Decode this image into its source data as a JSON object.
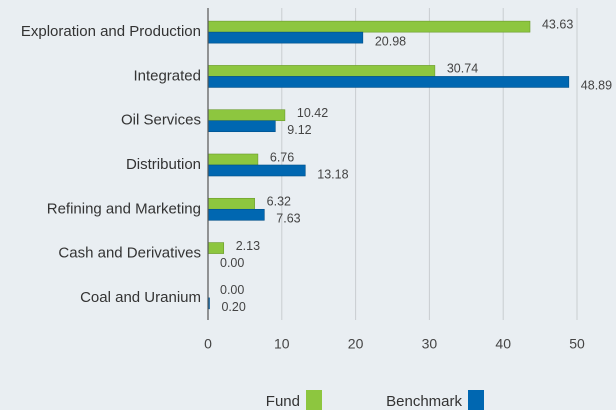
{
  "chart_data": {
    "type": "hbar",
    "categories": [
      "Exploration and Production",
      "Integrated",
      "Oil Services",
      "Distribution",
      "Refining and Marketing",
      "Cash and Derivatives",
      "Coal and Uranium"
    ],
    "series": [
      {
        "name": "Fund",
        "color": "#8dc63f",
        "values": [
          43.63,
          30.74,
          10.42,
          6.76,
          6.32,
          2.13,
          0
        ],
        "value_labels": [
          "43.63",
          "30.74",
          "10.42",
          "6.76",
          "6.32",
          "2.13",
          "0.00"
        ]
      },
      {
        "name": "Benchmark",
        "color": "#0067b1",
        "values": [
          20.98,
          48.89,
          9.12,
          13.18,
          7.63,
          0,
          0.2
        ],
        "value_labels": [
          "20.98",
          "48.89",
          "9.12",
          "13.18",
          "7.63",
          "0.00",
          "0.20"
        ]
      }
    ],
    "xlim": [
      0,
      50
    ],
    "xticks": [
      0,
      10,
      20,
      30,
      40,
      50
    ],
    "grid": true
  }
}
